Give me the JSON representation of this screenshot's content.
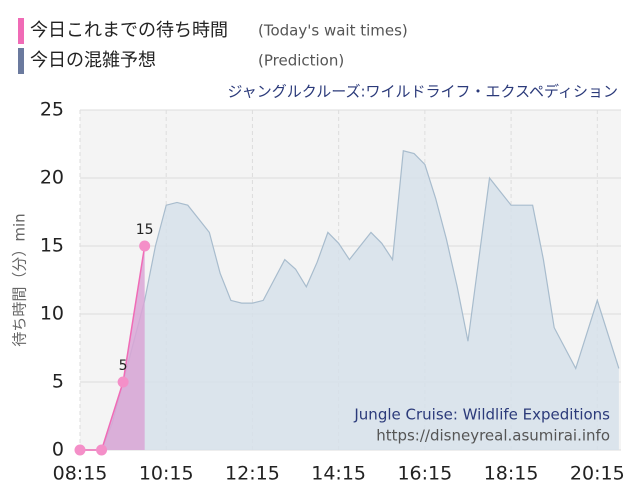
{
  "chart_data": {
    "type": "area_line",
    "subtitle": "ジャングルクルーズ:ワイルドライフ・エクスペディション",
    "ylabel": "待ち時間（分）min",
    "watermark": [
      "Jungle Cruise: Wildlife Expeditions",
      "https://disneyreal.asumirai.info"
    ],
    "series": [
      {
        "name": "今日これまでの待ち時間",
        "note": "(Today's wait times)",
        "color": "#f06bb6",
        "fill": "#d9a6d6",
        "x": [
          8.25,
          8.75,
          9.25,
          9.75
        ],
        "values": [
          0,
          0,
          5,
          15
        ],
        "value_labels": [
          null,
          null,
          "5",
          "15"
        ]
      },
      {
        "name": "今日の混雑予想",
        "note": "(Prediction)",
        "color": "#6b7a9e",
        "fill": "#d6e1ea",
        "x": [
          8.25,
          8.5,
          8.75,
          9.0,
          9.25,
          9.5,
          9.75,
          10.0,
          10.25,
          10.5,
          10.75,
          11.0,
          11.25,
          11.5,
          11.75,
          12.0,
          12.25,
          12.5,
          12.75,
          13.0,
          13.25,
          13.5,
          13.75,
          14.0,
          14.25,
          14.5,
          14.75,
          15.0,
          15.25,
          15.5,
          15.75,
          16.0,
          16.25,
          16.5,
          16.75,
          17.0,
          17.25,
          17.5,
          17.75,
          18.0,
          18.25,
          18.5,
          18.75,
          19.0,
          19.25,
          19.5,
          19.75,
          20.0,
          20.25,
          20.5,
          20.75
        ],
        "values": [
          0,
          0,
          0,
          2,
          5,
          8,
          11,
          15,
          18,
          18.2,
          18,
          17,
          16,
          13,
          11,
          10.8,
          10.8,
          11,
          12.5,
          14,
          13.3,
          12,
          13.8,
          16,
          15.2,
          14,
          15,
          16,
          15.2,
          14,
          22,
          21.8,
          21,
          18.5,
          15.5,
          12,
          8,
          14,
          20,
          19,
          18,
          18,
          18,
          14,
          9,
          7.5,
          6,
          8.5,
          11,
          8.5,
          6
        ]
      }
    ],
    "xlim": [
      8.25,
      20.8
    ],
    "xticks": [
      {
        "value": 8.25,
        "label": "08:15"
      },
      {
        "value": 10.25,
        "label": "10:15"
      },
      {
        "value": 12.25,
        "label": "12:15"
      },
      {
        "value": 14.25,
        "label": "14:15"
      },
      {
        "value": 16.25,
        "label": "16:15"
      },
      {
        "value": 18.25,
        "label": "18:15"
      },
      {
        "value": 20.25,
        "label": "20:15"
      }
    ],
    "ylim": [
      0,
      25
    ],
    "yticks": [
      0,
      5,
      10,
      15,
      20,
      25
    ],
    "grid": true
  }
}
